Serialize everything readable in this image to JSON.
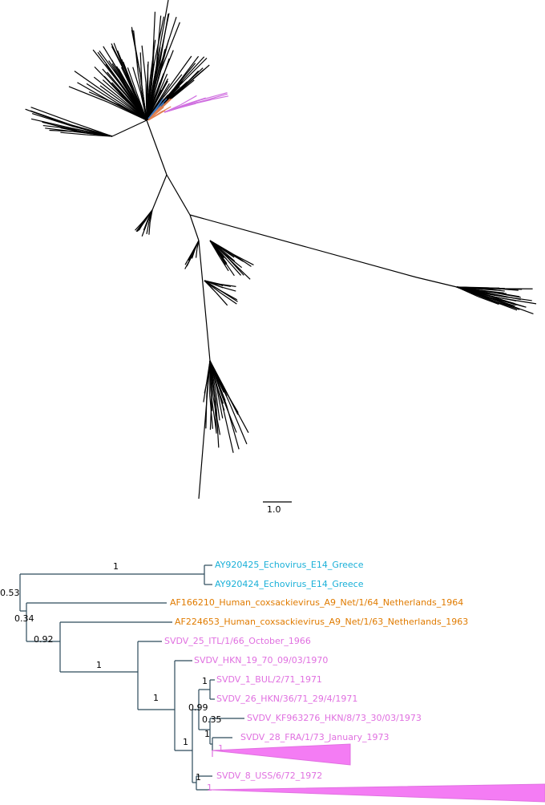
{
  "scale_bar": "1.0",
  "tips": [
    "AY920425_Echovirus_E14_Greece",
    "AY920424_Echovirus_E14_Greece",
    "AF166210_Human_coxsackievirus_A9_Net/1/64_Netherlands_1964",
    "AF224653_Human_coxsackievirus_A9_Net/1/63_Netherlands_1963",
    "SVDV_25_ITL/1/66_October_1966",
    "SVDV_HKN_19_70_09/03/1970",
    "SVDV_1_BUL/2/71_1971",
    "SVDV_26_HKN/36/71_29/4/1971",
    "SVDV_KF963276_HKN/8/73_30/03/1973",
    "SVDV_28_FRA/1/73_January_1973",
    "SVDV_8_USS/6/72_1972"
  ],
  "supports": [
    "1",
    "0.53",
    "0.34",
    "0.92",
    "1",
    "1",
    "1",
    "0.99",
    "1",
    "0.35",
    "1",
    "1"
  ],
  "collapsed_labels": [
    "1",
    "1"
  ]
}
